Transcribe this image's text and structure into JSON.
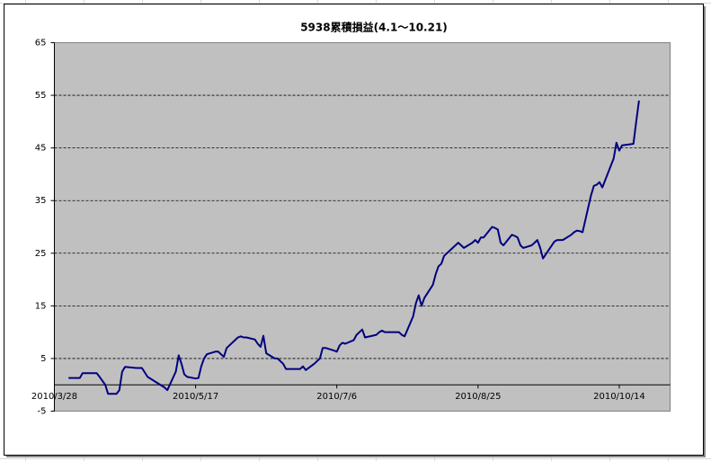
{
  "chart_data": {
    "type": "line",
    "title": "5938累積損益(4.1～10.21)",
    "x": [
      "2010/4/2",
      "2010/4/6",
      "2010/4/7",
      "2010/4/12",
      "2010/4/13",
      "2010/4/15",
      "2010/4/16",
      "2010/4/19",
      "2010/4/20",
      "2010/4/21",
      "2010/4/22",
      "2010/4/26",
      "2010/4/28",
      "2010/4/30",
      "2010/5/6",
      "2010/5/7",
      "2010/5/10",
      "2010/5/11",
      "2010/5/12",
      "2010/5/13",
      "2010/5/14",
      "2010/5/17",
      "2010/5/18",
      "2010/5/19",
      "2010/5/20",
      "2010/5/21",
      "2010/5/24",
      "2010/5/25",
      "2010/5/26",
      "2010/5/27",
      "2010/5/28",
      "2010/5/31",
      "2010/6/1",
      "2010/6/2",
      "2010/6/3",
      "2010/6/4",
      "2010/6/7",
      "2010/6/8",
      "2010/6/9",
      "2010/6/10",
      "2010/6/11",
      "2010/6/14",
      "2010/6/15",
      "2010/6/16",
      "2010/6/17",
      "2010/6/18",
      "2010/6/21",
      "2010/6/22",
      "2010/6/23",
      "2010/6/24",
      "2010/6/25",
      "2010/6/28",
      "2010/6/29",
      "2010/6/30",
      "2010/7/1",
      "2010/7/2",
      "2010/7/5",
      "2010/7/6",
      "2010/7/7",
      "2010/7/8",
      "2010/7/9",
      "2010/7/12",
      "2010/7/13",
      "2010/7/14",
      "2010/7/15",
      "2010/7/16",
      "2010/7/20",
      "2010/7/21",
      "2010/7/22",
      "2010/7/23",
      "2010/7/26",
      "2010/7/27",
      "2010/7/28",
      "2010/7/29",
      "2010/7/30",
      "2010/8/2",
      "2010/8/3",
      "2010/8/4",
      "2010/8/5",
      "2010/8/6",
      "2010/8/9",
      "2010/8/10",
      "2010/8/11",
      "2010/8/12",
      "2010/8/13",
      "2010/8/16",
      "2010/8/17",
      "2010/8/18",
      "2010/8/19",
      "2010/8/20",
      "2010/8/23",
      "2010/8/24",
      "2010/8/25",
      "2010/8/26",
      "2010/8/27",
      "2010/8/30",
      "2010/8/31",
      "2010/9/1",
      "2010/9/2",
      "2010/9/3",
      "2010/9/6",
      "2010/9/7",
      "2010/9/8",
      "2010/9/9",
      "2010/9/10",
      "2010/9/13",
      "2010/9/14",
      "2010/9/15",
      "2010/9/16",
      "2010/9/17",
      "2010/9/21",
      "2010/9/22",
      "2010/9/24",
      "2010/9/27",
      "2010/9/28",
      "2010/9/29",
      "2010/9/30",
      "2010/10/1",
      "2010/10/4",
      "2010/10/5",
      "2010/10/6",
      "2010/10/7",
      "2010/10/8",
      "2010/10/12",
      "2010/10/13",
      "2010/10/14",
      "2010/10/15",
      "2010/10/18",
      "2010/10/19",
      "2010/10/20",
      "2010/10/21"
    ],
    "values": [
      1.3,
      1.3,
      2.2,
      2.2,
      1.5,
      0,
      -1.7,
      -1.7,
      -1.0,
      2.5,
      3.4,
      3.2,
      3.2,
      1.5,
      -0.5,
      -1.0,
      2.5,
      5.6,
      4.0,
      2.0,
      1.5,
      1.2,
      1.3,
      3.5,
      5.0,
      5.8,
      6.3,
      6.3,
      5.8,
      5.3,
      7.0,
      8.5,
      9.0,
      9.2,
      9.0,
      9.0,
      8.6,
      7.8,
      7.2,
      9.3,
      6.0,
      5.0,
      5.0,
      4.5,
      4.0,
      3.0,
      3.0,
      3.0,
      3.0,
      3.5,
      2.8,
      4.0,
      4.5,
      5.0,
      7.0,
      7.0,
      6.5,
      6.3,
      7.5,
      8.0,
      7.8,
      8.5,
      9.5,
      10.0,
      10.5,
      9.0,
      9.5,
      10.0,
      10.3,
      10.0,
      10.0,
      10.0,
      10.0,
      9.5,
      9.2,
      13,
      15.5,
      17,
      15,
      16.5,
      19,
      21,
      22.5,
      23,
      24.5,
      26,
      26.5,
      27,
      26.5,
      26,
      27,
      27.5,
      27,
      28,
      28,
      30,
      29.8,
      29.5,
      27,
      26.5,
      28.5,
      28.3,
      28,
      26.5,
      26,
      26.5,
      27,
      27.5,
      26,
      24,
      27.2,
      27.5,
      27.5,
      28.5,
      29,
      29.3,
      29.2,
      29,
      36,
      37.8,
      38,
      38.5,
      37.5,
      43,
      46,
      44.5,
      45.5,
      45.7,
      45.8,
      50,
      54
    ],
    "color": "#000080",
    "xlim": [
      "2010/3/28",
      "2010/11/1"
    ],
    "xticks": [
      "2010/3/28",
      "2010/5/17",
      "2010/7/6",
      "2010/8/25",
      "2010/10/14"
    ],
    "ylim": [
      -5,
      65
    ],
    "yticks": [
      -5,
      5,
      15,
      25,
      35,
      45,
      55,
      65
    ],
    "grid": true
  }
}
